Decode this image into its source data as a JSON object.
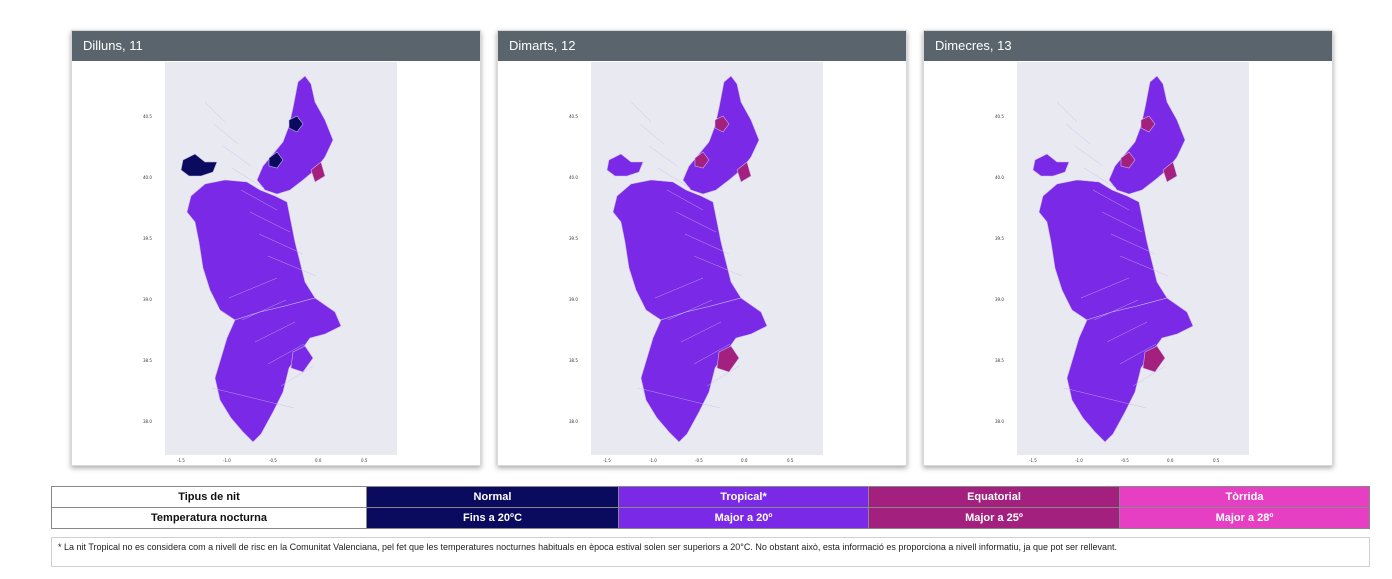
{
  "panels": [
    {
      "title": "Dilluns, 11",
      "regions": {
        "north": "tropical",
        "central": "tropical",
        "south": "tropical",
        "enclave": "normal",
        "patch_a": "normal",
        "patch_b": "normal",
        "patch_c": "equatorial",
        "patch_d": "tropical"
      }
    },
    {
      "title": "Dimarts, 12",
      "regions": {
        "north": "tropical",
        "central": "tropical",
        "south": "tropical",
        "enclave": "tropical",
        "patch_a": "equatorial",
        "patch_b": "equatorial",
        "patch_c": "equatorial",
        "patch_d": "equatorial"
      }
    },
    {
      "title": "Dimecres, 13",
      "regions": {
        "north": "tropical",
        "central": "tropical",
        "south": "tropical",
        "enclave": "tropical",
        "patch_a": "equatorial",
        "patch_b": "equatorial",
        "patch_c": "equatorial",
        "patch_d": "equatorial"
      }
    }
  ],
  "axes": {
    "y_ticks": [
      "40.5",
      "40.0",
      "39.5",
      "39.0",
      "38.5",
      "38.0"
    ],
    "x_ticks": [
      "-1.5",
      "-1.0",
      "-0.5",
      "0.0",
      "0.5"
    ]
  },
  "legend": {
    "row1": {
      "label": "Tipus de nit",
      "normal": "Normal",
      "tropical": "Tropical*",
      "equatorial": "Equatorial",
      "torrida": "Tòrrida"
    },
    "row2": {
      "label": "Temperatura nocturna",
      "normal": "Fins a 20ºC",
      "tropical": "Major a 20º",
      "equatorial": "Major a 25º",
      "torrida": "Major a 28º"
    }
  },
  "colors": {
    "normal": "#0a0a5e",
    "tropical": "#7a29e6",
    "equatorial": "#a3207e",
    "torrida": "#e63fc4",
    "header": "#59646c"
  },
  "note": "* La nit Tropical no es considera com a nivell de risc en la Comunitat Valenciana, pel fet que les temperatures nocturnes habituals en època estival solen ser superiors a 20°C. No obstant això, esta informació es proporciona a nivell informatiu, ja que pot ser rellevant."
}
